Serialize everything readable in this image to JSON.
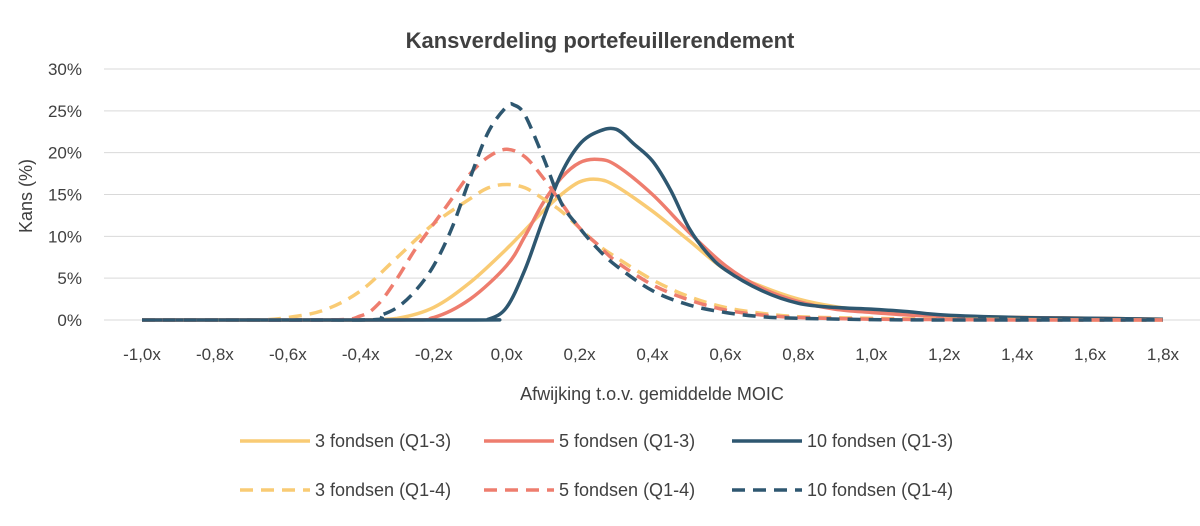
{
  "chart_data": {
    "type": "line",
    "title": "Kansverdeling portefeuillerendement",
    "xlabel": "Afwijking t.o.v. gemiddelde MOIC",
    "ylabel": "Kans (%)",
    "x_ticks": [
      "-1,0x",
      "-0,8x",
      "-0,6x",
      "-0,4x",
      "-0,2x",
      "0,0x",
      "0,2x",
      "0,4x",
      "0,6x",
      "0,8x",
      "1,0x",
      "1,2x",
      "1,4x",
      "1,6x",
      "1,8x"
    ],
    "y_ticks": [
      "0%",
      "5%",
      "10%",
      "15%",
      "20%",
      "25%",
      "30%"
    ],
    "xlim": [
      -1.0,
      1.8
    ],
    "ylim": [
      0,
      30
    ],
    "grid": "horizontal",
    "legend_position": "bottom",
    "series": [
      {
        "name": "3 fondsen (Q1-3)",
        "color": "#F9CB74",
        "dash": "solid",
        "x": [
          -1.0,
          -0.6,
          -0.4,
          -0.3,
          -0.2,
          -0.1,
          0.0,
          0.1,
          0.15,
          0.2,
          0.25,
          0.3,
          0.4,
          0.5,
          0.6,
          0.7,
          0.8,
          0.9,
          1.0,
          1.1,
          1.2,
          1.4,
          1.6,
          1.8
        ],
        "y": [
          0,
          0,
          0,
          0.2,
          1.5,
          4.5,
          8.5,
          13,
          15,
          16.5,
          16.8,
          16,
          13,
          9.5,
          6,
          4,
          2.5,
          1.6,
          1.1,
          0.8,
          0.5,
          0.3,
          0.2,
          0.1
        ]
      },
      {
        "name": "5 fondsen (Q1-3)",
        "color": "#EE7D6E",
        "dash": "solid",
        "x": [
          -1.0,
          -0.3,
          -0.2,
          -0.1,
          0.0,
          0.05,
          0.1,
          0.15,
          0.2,
          0.25,
          0.3,
          0.4,
          0.5,
          0.6,
          0.7,
          0.8,
          0.9,
          1.0,
          1.1,
          1.2,
          1.4,
          1.6,
          1.8
        ],
        "y": [
          0,
          0,
          0.3,
          2.5,
          6.5,
          10,
          14,
          17,
          18.8,
          19.2,
          18.5,
          15,
          10.5,
          6.5,
          3.8,
          2.2,
          1.3,
          0.9,
          0.6,
          0.4,
          0.3,
          0.2,
          0.1
        ]
      },
      {
        "name": "10 fondsen (Q1-3)",
        "color": "#2E5770",
        "dash": "solid",
        "x": [
          -1.0,
          -0.1,
          -0.05,
          0.0,
          0.05,
          0.1,
          0.15,
          0.2,
          0.25,
          0.3,
          0.35,
          0.4,
          0.45,
          0.5,
          0.55,
          0.6,
          0.7,
          0.8,
          0.9,
          1.0,
          1.1,
          1.2,
          1.4,
          1.6,
          1.8
        ],
        "y": [
          0,
          0,
          0.1,
          1.5,
          6,
          12,
          17.5,
          21,
          22.5,
          22.8,
          21,
          19,
          15.5,
          11,
          8,
          6,
          3.5,
          2,
          1.5,
          1.3,
          1,
          0.6,
          0.3,
          0.2,
          0.1
        ]
      },
      {
        "name": "3 fondsen (Q1-4)",
        "color": "#F9CB74",
        "dash": "dashed",
        "x": [
          -1.0,
          -0.7,
          -0.6,
          -0.5,
          -0.4,
          -0.3,
          -0.2,
          -0.1,
          -0.05,
          0.0,
          0.05,
          0.1,
          0.15,
          0.2,
          0.25,
          0.3,
          0.4,
          0.5,
          0.6,
          0.7,
          0.8,
          1.0,
          1.2,
          1.4,
          1.6,
          1.8
        ],
        "y": [
          0,
          0,
          0.3,
          1.2,
          3.5,
          7.5,
          11.5,
          14.5,
          15.8,
          16.2,
          15.8,
          14.5,
          13,
          11,
          9,
          7.5,
          4.8,
          2.8,
          1.5,
          0.8,
          0.4,
          0.2,
          0.1,
          0.05,
          0,
          0
        ]
      },
      {
        "name": "5 fondsen (Q1-4)",
        "color": "#EE7D6E",
        "dash": "dashed",
        "x": [
          -1.0,
          -0.5,
          -0.4,
          -0.35,
          -0.3,
          -0.25,
          -0.2,
          -0.15,
          -0.1,
          -0.05,
          0.0,
          0.05,
          0.1,
          0.15,
          0.2,
          0.25,
          0.3,
          0.4,
          0.5,
          0.6,
          0.7,
          0.8,
          1.0,
          1.2,
          1.4,
          1.6,
          1.8
        ],
        "y": [
          0,
          0,
          0.5,
          2,
          5,
          8.5,
          11.5,
          14.5,
          17.5,
          19.5,
          20.4,
          19.5,
          17,
          14,
          11,
          9,
          7,
          4.2,
          2.4,
          1.2,
          0.6,
          0.3,
          0.1,
          0.05,
          0,
          0,
          0
        ]
      },
      {
        "name": "10 fondsen (Q1-4)",
        "color": "#2E5770",
        "dash": "dashed",
        "x": [
          -1.0,
          -0.4,
          -0.35,
          -0.3,
          -0.25,
          -0.2,
          -0.15,
          -0.1,
          -0.05,
          0.0,
          0.02,
          0.05,
          0.1,
          0.15,
          0.2,
          0.25,
          0.3,
          0.4,
          0.5,
          0.6,
          0.7,
          0.8,
          1.0,
          1.2,
          1.4,
          1.6,
          1.8
        ],
        "y": [
          0,
          0,
          0.5,
          1.5,
          3.5,
          6.5,
          11,
          17,
          22.5,
          25.5,
          25.7,
          24.5,
          19.5,
          14,
          11,
          8.5,
          6.5,
          3.5,
          1.8,
          0.9,
          0.4,
          0.2,
          0.05,
          0,
          0,
          0,
          0
        ]
      }
    ]
  }
}
